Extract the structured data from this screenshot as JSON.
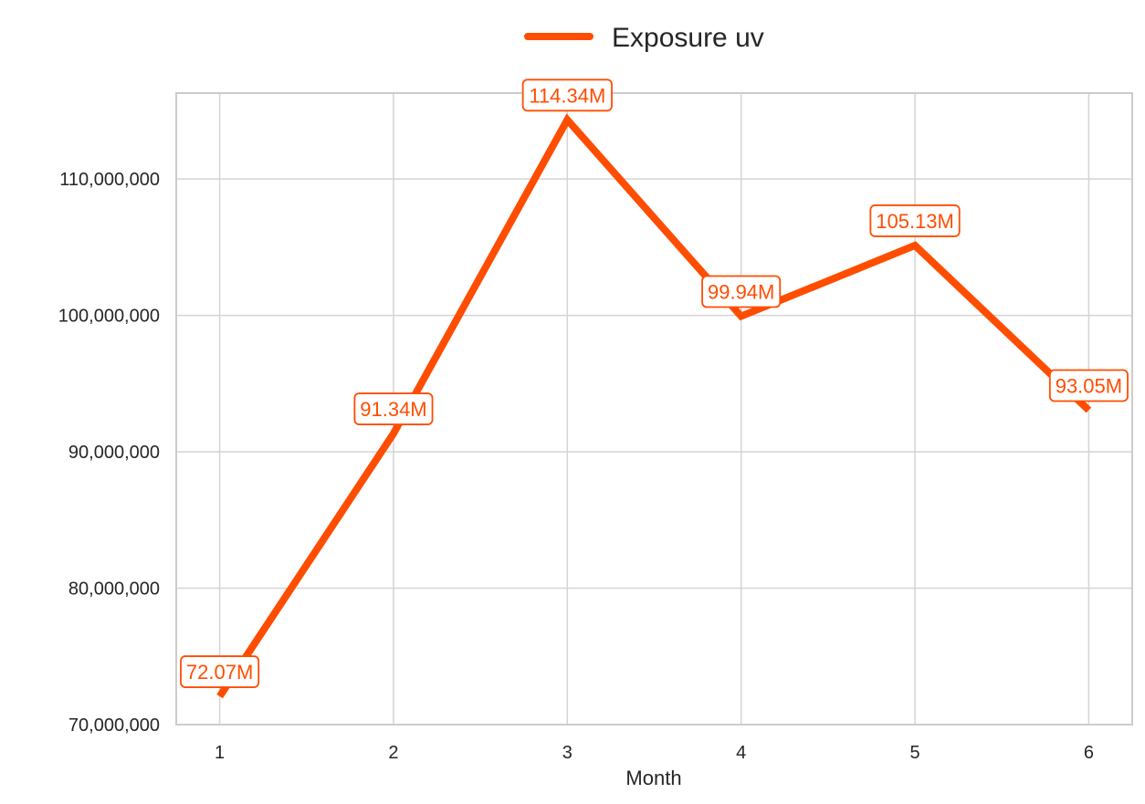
{
  "chart_data": {
    "type": "line",
    "title": "",
    "xlabel": "Month",
    "ylabel": "",
    "x": [
      1,
      2,
      3,
      4,
      5,
      6
    ],
    "x_tick_labels": [
      "1",
      "2",
      "3",
      "4",
      "5",
      "6"
    ],
    "xlim": [
      0.75,
      6.25
    ],
    "ylim": [
      70000000,
      116300000
    ],
    "y_ticks": [
      70000000,
      80000000,
      90000000,
      100000000,
      110000000
    ],
    "y_tick_labels": [
      "70,000,000",
      "80,000,000",
      "90,000,000",
      "100,000,000",
      "110,000,000"
    ],
    "grid": true,
    "legend_position": "top-center",
    "series": [
      {
        "name": "Exposure uv",
        "color": "#ff4d00",
        "values": [
          72070000,
          91340000,
          114340000,
          99940000,
          105130000,
          93050000
        ],
        "data_labels": [
          "72.07M",
          "91.34M",
          "114.34M",
          "99.94M",
          "105.13M",
          "93.05M"
        ]
      }
    ]
  }
}
